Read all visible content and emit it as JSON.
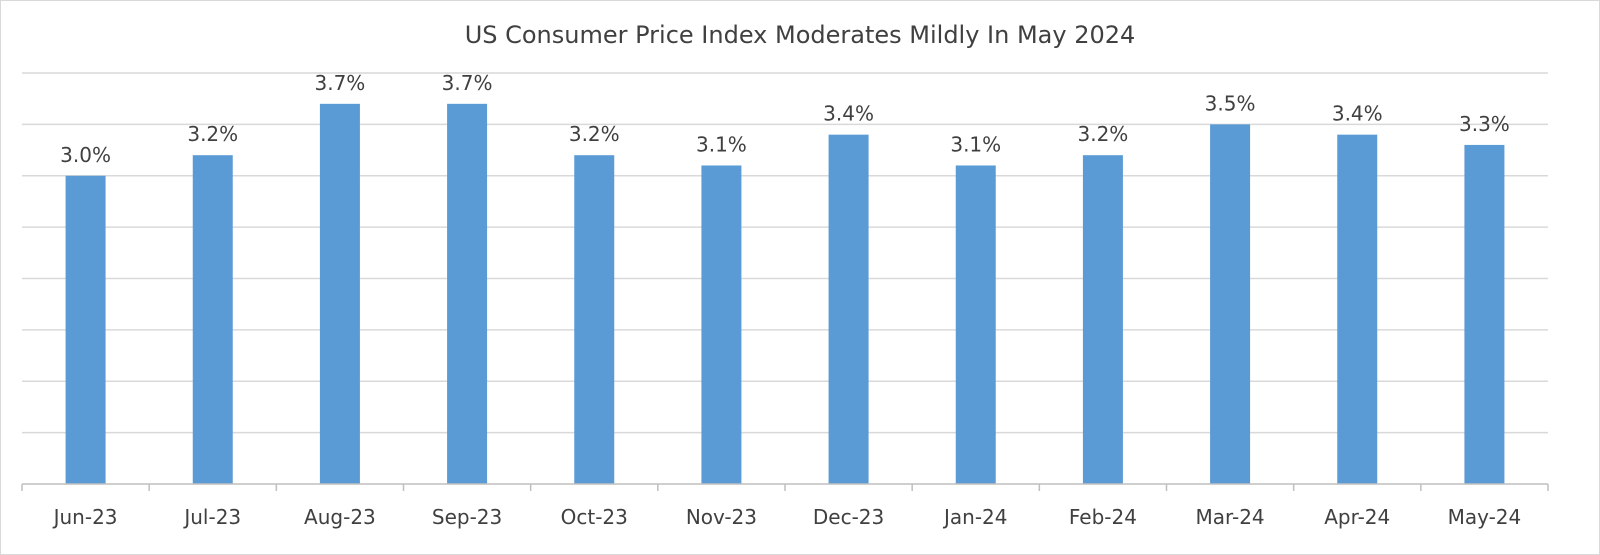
{
  "chart_data": {
    "type": "bar",
    "title": "US Consumer Price Index Moderates Mildly In May 2024",
    "xlabel": "",
    "ylabel": "",
    "categories": [
      "Jun-23",
      "Jul-23",
      "Aug-23",
      "Sep-23",
      "Oct-23",
      "Nov-23",
      "Dec-23",
      "Jan-24",
      "Feb-24",
      "Mar-24",
      "Apr-24",
      "May-24"
    ],
    "values": [
      3.0,
      3.2,
      3.7,
      3.7,
      3.2,
      3.1,
      3.4,
      3.1,
      3.2,
      3.5,
      3.4,
      3.3
    ],
    "data_labels": [
      "3.0%",
      "3.2%",
      "3.7%",
      "3.7%",
      "3.2%",
      "3.1%",
      "3.4%",
      "3.1%",
      "3.2%",
      "3.5%",
      "3.4%",
      "3.3%"
    ],
    "ylim": [
      0,
      4.0
    ],
    "y_gridline_step": 0.5,
    "y_tick_labels_visible": false,
    "grid": true,
    "legend": "none",
    "bar_color": "#5b9bd5",
    "gridline_color": "#d9d9d9",
    "text_color": "#404040"
  }
}
